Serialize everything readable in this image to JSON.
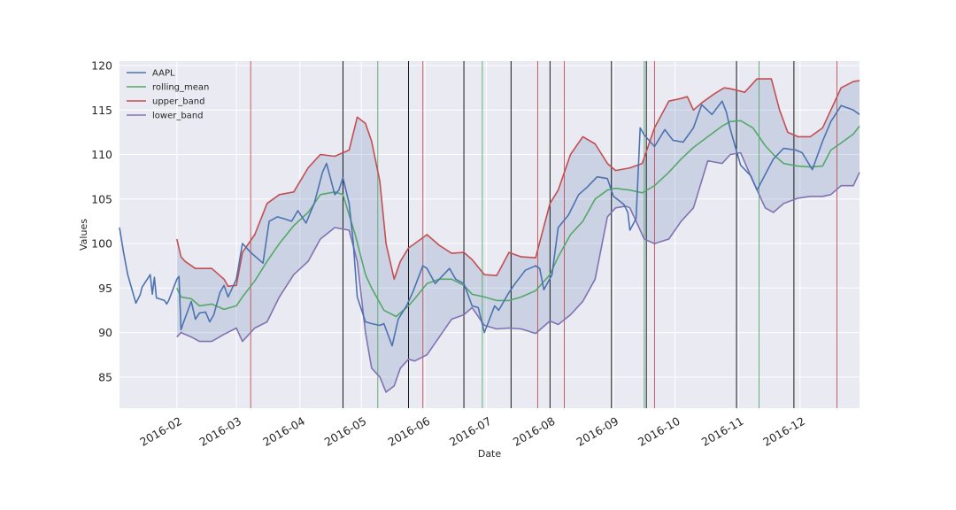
{
  "chart_data": {
    "type": "line",
    "xlabel": "Date",
    "ylabel": "Values",
    "xlim": [
      "2016-01-04",
      "2016-12-30"
    ],
    "ylim": [
      81.5,
      120.5
    ],
    "x_ticks": [
      "2016-02",
      "2016-03",
      "2016-04",
      "2016-05",
      "2016-06",
      "2016-07",
      "2016-08",
      "2016-09",
      "2016-10",
      "2016-11",
      "2016-12"
    ],
    "y_ticks": [
      85,
      90,
      95,
      100,
      105,
      110,
      115,
      120
    ],
    "grid": true,
    "legend_position": "upper-left",
    "colors": {
      "background": "#eaeaf2",
      "grid": "#ffffff",
      "aapl": "#4c72b0",
      "rolling_mean": "#55a868",
      "upper_band": "#c44e52",
      "lower_band": "#8172b2",
      "band_fill": "#4c72b0",
      "buy": "#c44e52",
      "sell": "#55a868",
      "other": "#000000"
    },
    "series": [
      {
        "name": "AAPL",
        "color": "#4c72b0",
        "x": [
          "2016-01-04",
          "2016-01-06",
          "2016-01-08",
          "2016-01-12",
          "2016-01-14",
          "2016-01-15",
          "2016-01-19",
          "2016-01-20",
          "2016-01-21",
          "2016-01-22",
          "2016-01-26",
          "2016-01-27",
          "2016-01-28",
          "2016-02-01",
          "2016-02-02",
          "2016-02-03",
          "2016-02-04",
          "2016-02-08",
          "2016-02-10",
          "2016-02-12",
          "2016-02-15",
          "2016-02-17",
          "2016-02-19",
          "2016-02-22",
          "2016-02-24",
          "2016-02-26",
          "2016-03-01",
          "2016-03-04",
          "2016-03-08",
          "2016-03-14",
          "2016-03-17",
          "2016-03-21",
          "2016-03-24",
          "2016-03-28",
          "2016-03-31",
          "2016-04-04",
          "2016-04-08",
          "2016-04-12",
          "2016-04-14",
          "2016-04-18",
          "2016-04-20",
          "2016-04-22",
          "2016-04-25",
          "2016-04-27",
          "2016-04-29",
          "2016-05-03",
          "2016-05-06",
          "2016-05-10",
          "2016-05-12",
          "2016-05-16",
          "2016-05-19",
          "2016-05-23",
          "2016-05-26",
          "2016-05-31",
          "2016-06-02",
          "2016-06-06",
          "2016-06-08",
          "2016-06-13",
          "2016-06-16",
          "2016-06-20",
          "2016-06-24",
          "2016-06-27",
          "2016-06-30",
          "2016-07-05",
          "2016-07-07",
          "2016-07-12",
          "2016-07-15",
          "2016-07-20",
          "2016-07-25",
          "2016-07-27",
          "2016-07-29",
          "2016-08-02",
          "2016-08-05",
          "2016-08-10",
          "2016-08-15",
          "2016-08-19",
          "2016-08-24",
          "2016-08-29",
          "2016-09-01",
          "2016-09-06",
          "2016-09-08",
          "2016-09-09",
          "2016-09-12",
          "2016-09-14",
          "2016-09-16",
          "2016-09-21",
          "2016-09-26",
          "2016-09-30",
          "2016-10-05",
          "2016-10-10",
          "2016-10-14",
          "2016-10-19",
          "2016-10-24",
          "2016-10-26",
          "2016-10-28",
          "2016-11-02",
          "2016-11-07",
          "2016-11-10",
          "2016-11-15",
          "2016-11-18",
          "2016-11-23",
          "2016-11-29",
          "2016-12-02",
          "2016-12-07",
          "2016-12-12",
          "2016-12-16",
          "2016-12-21",
          "2016-12-27",
          "2016-12-30"
        ],
        "y": [
          101.8,
          99.0,
          96.5,
          93.3,
          94.2,
          95.1,
          96.5,
          94.3,
          96.2,
          93.9,
          93.6,
          93.2,
          93.6,
          96.0,
          96.3,
          90.3,
          91.0,
          93.5,
          91.5,
          92.2,
          92.3,
          91.2,
          92.0,
          94.5,
          95.3,
          94.0,
          96.0,
          100.0,
          99.0,
          97.8,
          102.5,
          103.0,
          102.8,
          102.5,
          103.7,
          102.3,
          104.5,
          108.0,
          109.0,
          105.5,
          106.0,
          107.4,
          104.5,
          100.2,
          94.0,
          91.2,
          91.0,
          90.8,
          91.0,
          88.5,
          91.5,
          93.0,
          94.5,
          97.5,
          97.2,
          95.5,
          96.0,
          97.2,
          96.0,
          95.5,
          93.0,
          92.8,
          90.0,
          93.0,
          92.5,
          94.5,
          95.5,
          97.0,
          97.5,
          97.2,
          94.8,
          96.5,
          101.8,
          103.2,
          105.5,
          106.3,
          107.5,
          107.3,
          105.3,
          104.4,
          103.5,
          101.5,
          102.8,
          113.0,
          112.2,
          110.9,
          112.8,
          111.6,
          111.4,
          113.0,
          115.6,
          114.5,
          116.0,
          114.8,
          112.8,
          108.8,
          107.6,
          106.0,
          108.2,
          109.5,
          110.7,
          110.5,
          110.2,
          108.3,
          111.5,
          113.7,
          115.5,
          115.0,
          114.5
        ]
      },
      {
        "name": "rolling_mean",
        "color": "#55a868",
        "x": [
          "2016-02-01",
          "2016-02-03",
          "2016-02-08",
          "2016-02-12",
          "2016-02-18",
          "2016-02-24",
          "2016-03-01",
          "2016-03-04",
          "2016-03-10",
          "2016-03-16",
          "2016-03-22",
          "2016-03-29",
          "2016-04-05",
          "2016-04-11",
          "2016-04-18",
          "2016-04-22",
          "2016-04-28",
          "2016-05-03",
          "2016-05-06",
          "2016-05-12",
          "2016-05-18",
          "2016-05-24",
          "2016-05-27",
          "2016-06-02",
          "2016-06-08",
          "2016-06-14",
          "2016-06-20",
          "2016-06-24",
          "2016-06-30",
          "2016-07-06",
          "2016-07-12",
          "2016-07-18",
          "2016-07-25",
          "2016-08-01",
          "2016-08-05",
          "2016-08-11",
          "2016-08-17",
          "2016-08-23",
          "2016-08-29",
          "2016-09-02",
          "2016-09-09",
          "2016-09-15",
          "2016-09-21",
          "2016-09-28",
          "2016-10-04",
          "2016-10-10",
          "2016-10-17",
          "2016-10-24",
          "2016-10-28",
          "2016-11-02",
          "2016-11-08",
          "2016-11-14",
          "2016-11-18",
          "2016-11-23",
          "2016-11-30",
          "2016-12-06",
          "2016-12-12",
          "2016-12-16",
          "2016-12-21",
          "2016-12-27",
          "2016-12-30"
        ],
        "y": [
          95.0,
          94.0,
          93.8,
          93.0,
          93.2,
          92.6,
          93.0,
          94.0,
          95.8,
          98.0,
          100.0,
          102.0,
          103.5,
          105.5,
          105.8,
          105.5,
          101.0,
          96.5,
          95.0,
          92.5,
          91.8,
          93.0,
          93.8,
          95.5,
          96.0,
          96.0,
          95.3,
          94.3,
          94.0,
          93.6,
          93.6,
          94.0,
          94.7,
          96.5,
          98.5,
          101.0,
          102.5,
          105.0,
          106.0,
          106.2,
          106.0,
          105.7,
          106.5,
          108.0,
          109.5,
          110.8,
          112.0,
          113.2,
          113.7,
          113.8,
          113.0,
          111.0,
          110.0,
          109.0,
          108.7,
          108.6,
          108.7,
          110.5,
          111.3,
          112.3,
          113.2
        ]
      },
      {
        "name": "upper_band",
        "color": "#c44e52",
        "x": [
          "2016-02-01",
          "2016-02-03",
          "2016-02-05",
          "2016-02-10",
          "2016-02-12",
          "2016-02-18",
          "2016-02-24",
          "2016-02-26",
          "2016-03-01",
          "2016-03-04",
          "2016-03-10",
          "2016-03-16",
          "2016-03-22",
          "2016-03-29",
          "2016-04-05",
          "2016-04-11",
          "2016-04-18",
          "2016-04-25",
          "2016-04-29",
          "2016-05-03",
          "2016-05-06",
          "2016-05-10",
          "2016-05-13",
          "2016-05-17",
          "2016-05-20",
          "2016-05-24",
          "2016-05-27",
          "2016-06-02",
          "2016-06-08",
          "2016-06-14",
          "2016-06-20",
          "2016-06-24",
          "2016-06-30",
          "2016-07-06",
          "2016-07-12",
          "2016-07-18",
          "2016-07-25",
          "2016-08-01",
          "2016-08-05",
          "2016-08-11",
          "2016-08-17",
          "2016-08-23",
          "2016-08-29",
          "2016-09-02",
          "2016-09-09",
          "2016-09-15",
          "2016-09-21",
          "2016-09-28",
          "2016-10-04",
          "2016-10-07",
          "2016-10-10",
          "2016-10-14",
          "2016-10-20",
          "2016-10-25",
          "2016-10-28",
          "2016-11-04",
          "2016-11-10",
          "2016-11-17",
          "2016-11-21",
          "2016-11-25",
          "2016-11-30",
          "2016-12-06",
          "2016-12-12",
          "2016-12-16",
          "2016-12-21",
          "2016-12-27",
          "2016-12-30"
        ],
        "y": [
          100.5,
          98.5,
          98.0,
          97.2,
          97.2,
          97.2,
          96.0,
          95.2,
          95.3,
          99.0,
          101.0,
          104.5,
          105.5,
          105.8,
          108.5,
          110.0,
          109.8,
          110.5,
          114.2,
          113.5,
          111.5,
          107.0,
          100.0,
          96.0,
          98.0,
          99.5,
          100.0,
          101.0,
          99.8,
          98.9,
          99.0,
          98.2,
          96.5,
          96.4,
          99.0,
          98.5,
          98.4,
          104.5,
          106.0,
          110.0,
          112.0,
          111.2,
          109.0,
          108.2,
          108.5,
          109.0,
          113.0,
          116.0,
          116.3,
          116.5,
          115.0,
          115.8,
          116.8,
          117.5,
          117.4,
          117.0,
          118.5,
          118.5,
          115.0,
          112.5,
          112.0,
          112.0,
          113.0,
          115.0,
          117.5,
          118.2,
          118.3
        ]
      },
      {
        "name": "lower_band",
        "color": "#8172b2",
        "x": [
          "2016-02-01",
          "2016-02-03",
          "2016-02-08",
          "2016-02-12",
          "2016-02-18",
          "2016-02-24",
          "2016-03-01",
          "2016-03-04",
          "2016-03-10",
          "2016-03-16",
          "2016-03-22",
          "2016-03-29",
          "2016-04-05",
          "2016-04-11",
          "2016-04-18",
          "2016-04-25",
          "2016-04-29",
          "2016-05-03",
          "2016-05-06",
          "2016-05-10",
          "2016-05-13",
          "2016-05-17",
          "2016-05-20",
          "2016-05-24",
          "2016-05-27",
          "2016-06-02",
          "2016-06-08",
          "2016-06-14",
          "2016-06-20",
          "2016-06-24",
          "2016-06-30",
          "2016-07-06",
          "2016-07-12",
          "2016-07-18",
          "2016-07-25",
          "2016-08-01",
          "2016-08-05",
          "2016-08-11",
          "2016-08-17",
          "2016-08-23",
          "2016-08-29",
          "2016-09-02",
          "2016-09-07",
          "2016-09-09",
          "2016-09-13",
          "2016-09-16",
          "2016-09-21",
          "2016-09-28",
          "2016-10-04",
          "2016-10-10",
          "2016-10-17",
          "2016-10-24",
          "2016-10-28",
          "2016-11-02",
          "2016-11-08",
          "2016-11-14",
          "2016-11-18",
          "2016-11-23",
          "2016-11-30",
          "2016-12-06",
          "2016-12-12",
          "2016-12-16",
          "2016-12-21",
          "2016-12-27",
          "2016-12-30"
        ],
        "y": [
          89.5,
          90.0,
          89.5,
          89.0,
          89.0,
          89.8,
          90.5,
          89.0,
          90.5,
          91.2,
          94.0,
          96.5,
          98.0,
          100.5,
          101.8,
          101.5,
          98.0,
          90.0,
          86.0,
          85.0,
          83.3,
          84.0,
          86.0,
          87.0,
          86.8,
          87.5,
          89.5,
          91.5,
          92.0,
          92.8,
          90.8,
          90.4,
          90.5,
          90.4,
          89.9,
          91.3,
          90.9,
          92.0,
          93.5,
          96.0,
          103.0,
          104.0,
          104.2,
          104.0,
          102.0,
          100.5,
          100.0,
          100.5,
          102.5,
          104.0,
          109.3,
          109.0,
          110.0,
          110.2,
          107.0,
          104.0,
          103.5,
          104.5,
          105.1,
          105.3,
          105.3,
          105.5,
          106.5,
          106.5,
          108.0
        ]
      }
    ],
    "signal_lines": {
      "buy_red": [
        "2016-03-08",
        "2016-05-31",
        "2016-07-26",
        "2016-08-08",
        "2016-09-21",
        "2016-12-19"
      ],
      "sell_green": [
        "2016-05-09",
        "2016-06-29",
        "2016-09-16",
        "2016-11-11"
      ],
      "black": [
        "2016-04-22",
        "2016-05-24",
        "2016-06-20",
        "2016-07-13",
        "2016-08-01",
        "2016-08-31",
        "2016-09-17",
        "2016-10-31",
        "2016-11-28"
      ]
    }
  }
}
